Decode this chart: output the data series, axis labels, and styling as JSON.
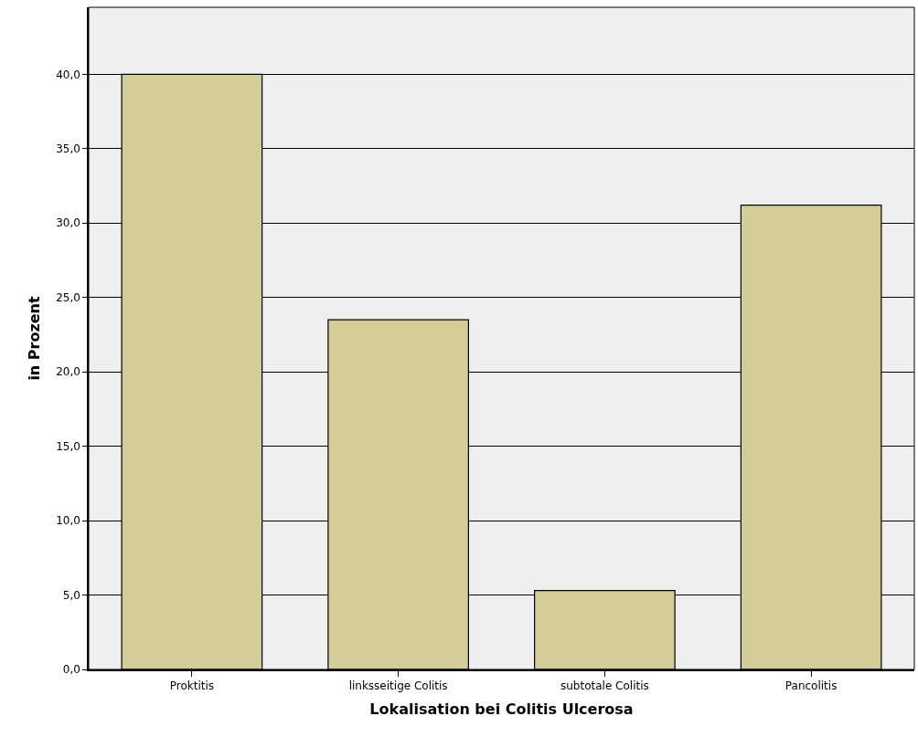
{
  "chart_data": {
    "type": "bar",
    "xlabel": "Lokalisation bei Colitis Ulcerosa",
    "ylabel": "in Prozent",
    "categories": [
      "Proktitis",
      "linksseitige Colitis",
      "subtotale Colitis",
      "Pancolitis"
    ],
    "values": [
      40.0,
      23.5,
      5.3,
      31.2
    ],
    "color": "#d3ce97",
    "ylim": [
      0,
      44.5
    ],
    "yticks": [
      {
        "value": 0,
        "label": "0,0"
      },
      {
        "value": 5,
        "label": "5,0"
      },
      {
        "value": 10,
        "label": "10,0"
      },
      {
        "value": 15,
        "label": "15,0"
      },
      {
        "value": 20,
        "label": "20,0"
      },
      {
        "value": 25,
        "label": "25,0"
      },
      {
        "value": 30,
        "label": "30,0"
      },
      {
        "value": 35,
        "label": "35,0"
      },
      {
        "value": 40,
        "label": "40,0"
      }
    ],
    "grid": "y",
    "legend": false
  }
}
